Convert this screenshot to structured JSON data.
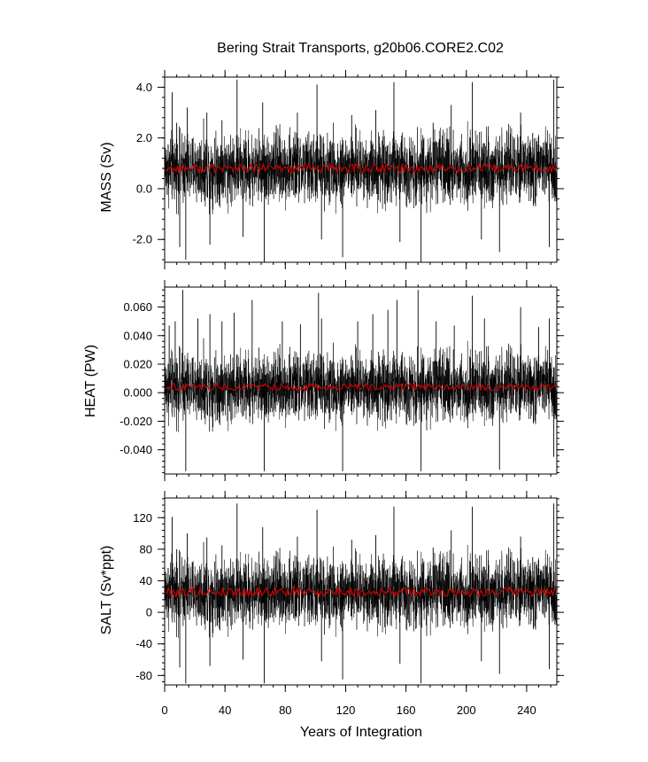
{
  "chart_data": {
    "title": "Bering Strait Transports, g20b06.CORE2.C02",
    "type": "line",
    "xlabel": "Years of Integration",
    "xlim": [
      0,
      260
    ],
    "xticks": [
      0,
      40,
      80,
      120,
      160,
      200,
      240
    ],
    "xtick_labels": [
      "0",
      "40",
      "80",
      "120",
      "160",
      "200",
      "240"
    ],
    "series_colors": {
      "monthly": "#000000",
      "annual_mean": "#cc0000"
    },
    "panels": [
      {
        "ylabel": "MASS (Sv)",
        "ylim": [
          -2.9,
          4.4
        ],
        "yticks": [
          -2.0,
          0.0,
          2.0,
          4.0
        ],
        "ytick_labels": [
          "-2.0",
          "0.0",
          "2.0",
          "4.0"
        ],
        "monthly_mean": 0.8,
        "monthly_spread": 0.75,
        "annual_mean": 0.8,
        "annual_spread": 0.18,
        "extremes": [
          [
            5,
            3.8
          ],
          [
            8,
            2.6
          ],
          [
            10,
            -2.3
          ],
          [
            15,
            3.2
          ],
          [
            14,
            -2.8
          ],
          [
            28,
            3.0
          ],
          [
            30,
            -2.2
          ],
          [
            38,
            2.7
          ],
          [
            48,
            4.3
          ],
          [
            52,
            -1.9
          ],
          [
            65,
            3.4
          ],
          [
            66,
            -2.9
          ],
          [
            74,
            2.5
          ],
          [
            88,
            3.0
          ],
          [
            101,
            4.1
          ],
          [
            104,
            -2.0
          ],
          [
            118,
            -2.7
          ],
          [
            124,
            2.9
          ],
          [
            140,
            3.1
          ],
          [
            152,
            4.2
          ],
          [
            156,
            -2.1
          ],
          [
            170,
            -2.9
          ],
          [
            178,
            2.6
          ],
          [
            190,
            3.3
          ],
          [
            204,
            4.2
          ],
          [
            210,
            -2.0
          ],
          [
            222,
            -2.5
          ],
          [
            236,
            3.0
          ],
          [
            244,
            2.2
          ],
          [
            258,
            4.3
          ],
          [
            255,
            -2.3
          ]
        ]
      },
      {
        "ylabel": "HEAT (PW)",
        "ylim": [
          -0.057,
          0.074
        ],
        "yticks": [
          -0.04,
          -0.02,
          0.0,
          0.02,
          0.04,
          0.06
        ],
        "ytick_labels": [
          "-0.040",
          "-0.020",
          "0.000",
          "0.020",
          "0.040",
          "0.060"
        ],
        "monthly_mean": 0.004,
        "monthly_spread": 0.013,
        "annual_mean": 0.004,
        "annual_spread": 0.0025,
        "extremes": [
          [
            3,
            0.047
          ],
          [
            7,
            0.05
          ],
          [
            12,
            0.072
          ],
          [
            14,
            -0.055
          ],
          [
            22,
            0.052
          ],
          [
            30,
            0.055
          ],
          [
            38,
            0.05
          ],
          [
            46,
            0.056
          ],
          [
            58,
            0.065
          ],
          [
            66,
            -0.055
          ],
          [
            78,
            0.05
          ],
          [
            90,
            0.048
          ],
          [
            102,
            0.07
          ],
          [
            104,
            0.052
          ],
          [
            118,
            -0.055
          ],
          [
            128,
            0.05
          ],
          [
            138,
            0.055
          ],
          [
            148,
            0.058
          ],
          [
            154,
            0.065
          ],
          [
            168,
            0.072
          ],
          [
            170,
            -0.055
          ],
          [
            180,
            0.05
          ],
          [
            192,
            0.047
          ],
          [
            204,
            0.068
          ],
          [
            212,
            0.052
          ],
          [
            222,
            -0.054
          ],
          [
            236,
            0.06
          ],
          [
            248,
            0.046
          ],
          [
            255,
            0.052
          ],
          [
            258,
            -0.045
          ]
        ]
      },
      {
        "ylabel": "SALT (Sv*ppt)",
        "ylim": [
          -92,
          145
        ],
        "yticks": [
          -80,
          -40,
          0,
          40,
          80,
          120
        ],
        "ytick_labels": [
          "-80",
          "-40",
          "0",
          "40",
          "80",
          "120"
        ],
        "monthly_mean": 26,
        "monthly_spread": 24,
        "annual_mean": 26,
        "annual_spread": 6,
        "extremes": [
          [
            5,
            121
          ],
          [
            8,
            80
          ],
          [
            10,
            -70
          ],
          [
            15,
            100
          ],
          [
            14,
            -90
          ],
          [
            28,
            95
          ],
          [
            30,
            -68
          ],
          [
            38,
            85
          ],
          [
            48,
            138
          ],
          [
            52,
            -60
          ],
          [
            65,
            108
          ],
          [
            66,
            -90
          ],
          [
            74,
            78
          ],
          [
            88,
            96
          ],
          [
            101,
            130
          ],
          [
            104,
            -62
          ],
          [
            118,
            -85
          ],
          [
            124,
            92
          ],
          [
            140,
            98
          ],
          [
            152,
            134
          ],
          [
            156,
            -65
          ],
          [
            170,
            -90
          ],
          [
            178,
            82
          ],
          [
            190,
            104
          ],
          [
            204,
            134
          ],
          [
            210,
            -62
          ],
          [
            222,
            -78
          ],
          [
            236,
            96
          ],
          [
            244,
            70
          ],
          [
            258,
            138
          ],
          [
            255,
            -72
          ]
        ]
      }
    ]
  }
}
